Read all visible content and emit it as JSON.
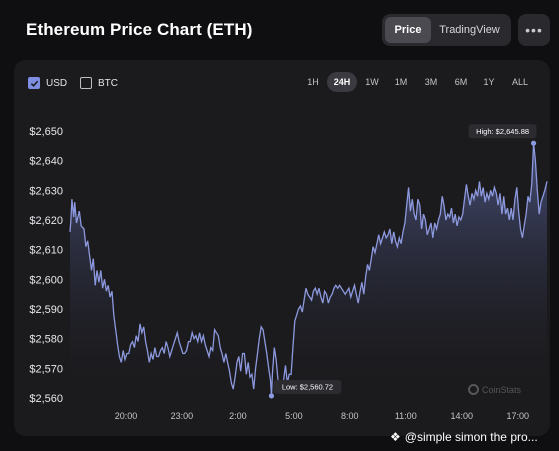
{
  "header": {
    "title": "Ethereum Price Chart (ETH)"
  },
  "view_toggle": {
    "price_label": "Price",
    "tradingview_label": "TradingView"
  },
  "more_icon": "ellipsis-icon",
  "currency": {
    "usd_label": "USD",
    "btc_label": "BTC",
    "usd_checked": true,
    "btc_checked": false
  },
  "ranges": [
    "1H",
    "24H",
    "1W",
    "1M",
    "3M",
    "6M",
    "1Y",
    "ALL"
  ],
  "active_range": "24H",
  "watermark": "CoinStats",
  "credit": "@simple simon the pro...",
  "colors": {
    "line": "#8d99de",
    "accent": "#7e8ee0",
    "card": "#1b1b1e",
    "background": "#0f0f11"
  },
  "chart_data": {
    "type": "area",
    "title": "",
    "xlabel": "",
    "ylabel": "",
    "x_ticks": [
      {
        "label": "20:00",
        "t": 3
      },
      {
        "label": "23:00",
        "t": 6
      },
      {
        "label": "2:00",
        "t": 9
      },
      {
        "label": "5:00",
        "t": 12
      },
      {
        "label": "8:00",
        "t": 15
      },
      {
        "label": "11:00",
        "t": 18
      },
      {
        "label": "14:00",
        "t": 21
      },
      {
        "label": "17:00",
        "t": 24
      }
    ],
    "y_ticks": [
      2560,
      2570,
      2580,
      2590,
      2600,
      2610,
      2620,
      2630,
      2640,
      2650
    ],
    "y_format_prefix": "$",
    "ylim": [
      2560,
      2650
    ],
    "xlim": [
      0,
      25.57
    ],
    "grid": false,
    "series": [
      {
        "values": [
          [
            0.0,
            2616
          ],
          [
            0.05,
            2620
          ],
          [
            0.1,
            2627
          ],
          [
            0.2,
            2621
          ],
          [
            0.25,
            2626
          ],
          [
            0.35,
            2619
          ],
          [
            0.5,
            2623
          ],
          [
            0.6,
            2618
          ],
          [
            0.75,
            2617
          ],
          [
            0.85,
            2611
          ],
          [
            0.95,
            2613
          ],
          [
            1.05,
            2608
          ],
          [
            1.15,
            2603
          ],
          [
            1.25,
            2607
          ],
          [
            1.35,
            2598
          ],
          [
            1.45,
            2603
          ],
          [
            1.55,
            2599
          ],
          [
            1.65,
            2603
          ],
          [
            1.75,
            2597
          ],
          [
            1.85,
            2600
          ],
          [
            1.95,
            2596
          ],
          [
            2.05,
            2598
          ],
          [
            2.15,
            2594
          ],
          [
            2.25,
            2596
          ],
          [
            2.35,
            2588
          ],
          [
            2.45,
            2583
          ],
          [
            2.55,
            2578
          ],
          [
            2.65,
            2574
          ],
          [
            2.75,
            2572
          ],
          [
            2.85,
            2576
          ],
          [
            2.95,
            2573
          ],
          [
            3.05,
            2575
          ],
          [
            3.15,
            2575
          ],
          [
            3.25,
            2578
          ],
          [
            3.35,
            2579
          ],
          [
            3.45,
            2577
          ],
          [
            3.55,
            2581
          ],
          [
            3.65,
            2579
          ],
          [
            3.75,
            2585
          ],
          [
            3.85,
            2582
          ],
          [
            3.95,
            2584
          ],
          [
            4.05,
            2579
          ],
          [
            4.15,
            2576
          ],
          [
            4.25,
            2572
          ],
          [
            4.35,
            2575
          ],
          [
            4.45,
            2573
          ],
          [
            4.55,
            2577
          ],
          [
            4.65,
            2574
          ],
          [
            4.75,
            2574
          ],
          [
            4.85,
            2576
          ],
          [
            4.95,
            2577
          ],
          [
            5.05,
            2575
          ],
          [
            5.15,
            2579
          ],
          [
            5.25,
            2577
          ],
          [
            5.35,
            2574
          ],
          [
            5.45,
            2576
          ],
          [
            5.55,
            2578
          ],
          [
            5.65,
            2580
          ],
          [
            5.75,
            2582
          ],
          [
            5.85,
            2579
          ],
          [
            5.95,
            2577
          ],
          [
            6.05,
            2575
          ],
          [
            6.15,
            2575
          ],
          [
            6.25,
            2576
          ],
          [
            6.35,
            2579
          ],
          [
            6.45,
            2579
          ],
          [
            6.55,
            2582
          ],
          [
            6.65,
            2580
          ],
          [
            6.75,
            2581
          ],
          [
            6.85,
            2579
          ],
          [
            6.95,
            2582
          ],
          [
            7.05,
            2579
          ],
          [
            7.15,
            2581
          ],
          [
            7.25,
            2578
          ],
          [
            7.35,
            2576
          ],
          [
            7.45,
            2574
          ],
          [
            7.55,
            2577
          ],
          [
            7.65,
            2576
          ],
          [
            7.75,
            2583
          ],
          [
            7.85,
            2582
          ],
          [
            7.95,
            2581
          ],
          [
            8.05,
            2577
          ],
          [
            8.15,
            2575
          ],
          [
            8.25,
            2572
          ],
          [
            8.35,
            2575
          ],
          [
            8.45,
            2572
          ],
          [
            8.55,
            2569
          ],
          [
            8.65,
            2565
          ],
          [
            8.75,
            2563
          ],
          [
            8.85,
            2567
          ],
          [
            8.95,
            2572
          ],
          [
            9.05,
            2574
          ],
          [
            9.15,
            2569
          ],
          [
            9.25,
            2575
          ],
          [
            9.35,
            2575
          ],
          [
            9.45,
            2568
          ],
          [
            9.55,
            2572
          ],
          [
            9.65,
            2567
          ],
          [
            9.75,
            2568
          ],
          [
            9.85,
            2563
          ],
          [
            9.95,
            2570
          ],
          [
            10.05,
            2575
          ],
          [
            10.15,
            2580
          ],
          [
            10.25,
            2584
          ],
          [
            10.35,
            2583
          ],
          [
            10.45,
            2579
          ],
          [
            10.55,
            2575
          ],
          [
            10.65,
            2570
          ],
          [
            10.75,
            2566
          ],
          [
            10.8,
            2560.72
          ],
          [
            10.85,
            2568
          ],
          [
            10.95,
            2577
          ],
          [
            11.05,
            2573
          ],
          [
            11.15,
            2566
          ],
          [
            11.25,
            2562
          ],
          [
            11.35,
            2563
          ],
          [
            11.45,
            2566
          ],
          [
            11.55,
            2571
          ],
          [
            11.65,
            2565
          ],
          [
            11.75,
            2568
          ],
          [
            11.85,
            2568
          ],
          [
            11.95,
            2577
          ],
          [
            12.05,
            2586
          ],
          [
            12.15,
            2588
          ],
          [
            12.25,
            2590
          ],
          [
            12.35,
            2591
          ],
          [
            12.45,
            2589
          ],
          [
            12.55,
            2593
          ],
          [
            12.65,
            2597
          ],
          [
            12.75,
            2595
          ],
          [
            12.85,
            2594
          ],
          [
            12.95,
            2593
          ],
          [
            13.05,
            2596
          ],
          [
            13.15,
            2597
          ],
          [
            13.25,
            2595
          ],
          [
            13.35,
            2597
          ],
          [
            13.45,
            2594
          ],
          [
            13.55,
            2592
          ],
          [
            13.65,
            2596
          ],
          [
            13.75,
            2595
          ],
          [
            13.85,
            2592
          ],
          [
            13.95,
            2594
          ],
          [
            14.05,
            2595
          ],
          [
            14.15,
            2597
          ],
          [
            14.25,
            2598
          ],
          [
            14.35,
            2597
          ],
          [
            14.45,
            2598
          ],
          [
            14.55,
            2597
          ],
          [
            14.65,
            2596
          ],
          [
            14.75,
            2595
          ],
          [
            14.85,
            2596
          ],
          [
            14.95,
            2597
          ],
          [
            15.05,
            2594
          ],
          [
            15.15,
            2596
          ],
          [
            15.25,
            2598
          ],
          [
            15.35,
            2595
          ],
          [
            15.45,
            2592
          ],
          [
            15.55,
            2596
          ],
          [
            15.65,
            2599
          ],
          [
            15.75,
            2595
          ],
          [
            15.85,
            2601
          ],
          [
            15.95,
            2605
          ],
          [
            16.05,
            2603
          ],
          [
            16.15,
            2607
          ],
          [
            16.25,
            2611
          ],
          [
            16.35,
            2609
          ],
          [
            16.45,
            2612
          ],
          [
            16.55,
            2615
          ],
          [
            16.65,
            2612
          ],
          [
            16.75,
            2614
          ],
          [
            16.85,
            2616
          ],
          [
            16.95,
            2614
          ],
          [
            17.05,
            2615
          ],
          [
            17.15,
            2617
          ],
          [
            17.25,
            2612
          ],
          [
            17.35,
            2616
          ],
          [
            17.45,
            2613
          ],
          [
            17.55,
            2611
          ],
          [
            17.65,
            2614
          ],
          [
            17.75,
            2612
          ],
          [
            17.85,
            2616
          ],
          [
            17.95,
            2619
          ],
          [
            18.05,
            2625
          ],
          [
            18.15,
            2631
          ],
          [
            18.25,
            2623
          ],
          [
            18.35,
            2627
          ],
          [
            18.45,
            2622
          ],
          [
            18.55,
            2620
          ],
          [
            18.65,
            2627
          ],
          [
            18.75,
            2625
          ],
          [
            18.85,
            2617
          ],
          [
            18.95,
            2622
          ],
          [
            19.05,
            2620
          ],
          [
            19.15,
            2615
          ],
          [
            19.25,
            2617
          ],
          [
            19.35,
            2619
          ],
          [
            19.45,
            2614
          ],
          [
            19.55,
            2619
          ],
          [
            19.65,
            2617
          ],
          [
            19.75,
            2620
          ],
          [
            19.85,
            2622
          ],
          [
            19.95,
            2628
          ],
          [
            20.05,
            2625
          ],
          [
            20.15,
            2620
          ],
          [
            20.25,
            2622
          ],
          [
            20.35,
            2621
          ],
          [
            20.45,
            2624
          ],
          [
            20.55,
            2619
          ],
          [
            20.65,
            2622
          ],
          [
            20.75,
            2618
          ],
          [
            20.85,
            2621
          ],
          [
            20.95,
            2620
          ],
          [
            21.05,
            2622
          ],
          [
            21.15,
            2627
          ],
          [
            21.25,
            2632
          ],
          [
            21.35,
            2628
          ],
          [
            21.45,
            2625
          ],
          [
            21.55,
            2629
          ],
          [
            21.65,
            2627
          ],
          [
            21.75,
            2630
          ],
          [
            21.85,
            2628
          ],
          [
            21.95,
            2633
          ],
          [
            22.05,
            2628
          ],
          [
            22.15,
            2631
          ],
          [
            22.25,
            2626
          ],
          [
            22.35,
            2629
          ],
          [
            22.45,
            2627
          ],
          [
            22.55,
            2630
          ],
          [
            22.65,
            2628
          ],
          [
            22.75,
            2631
          ],
          [
            22.85,
            2629
          ],
          [
            22.95,
            2625
          ],
          [
            23.05,
            2629
          ],
          [
            23.15,
            2622
          ],
          [
            23.25,
            2628
          ],
          [
            23.35,
            2622
          ],
          [
            23.45,
            2624
          ],
          [
            23.55,
            2620
          ],
          [
            23.65,
            2624
          ],
          [
            23.75,
            2620
          ],
          [
            23.85,
            2627
          ],
          [
            23.95,
            2631
          ],
          [
            24.05,
            2623
          ],
          [
            24.15,
            2617
          ],
          [
            24.25,
            2614
          ],
          [
            24.35,
            2618
          ],
          [
            24.45,
            2622
          ],
          [
            24.55,
            2628
          ],
          [
            24.65,
            2626
          ],
          [
            24.75,
            2632
          ],
          [
            24.85,
            2645.88
          ],
          [
            24.95,
            2640
          ],
          [
            25.05,
            2630
          ],
          [
            25.15,
            2622
          ],
          [
            25.25,
            2626
          ],
          [
            25.35,
            2628
          ],
          [
            25.45,
            2630
          ],
          [
            25.57,
            2633
          ]
        ]
      }
    ],
    "annotations": [
      {
        "name": "high",
        "text": "High: $2,645.88",
        "x": 24.85,
        "y": 2645.88
      },
      {
        "name": "low",
        "text": "Low: $2,560.72",
        "x": 10.8,
        "y": 2560.72
      }
    ]
  }
}
